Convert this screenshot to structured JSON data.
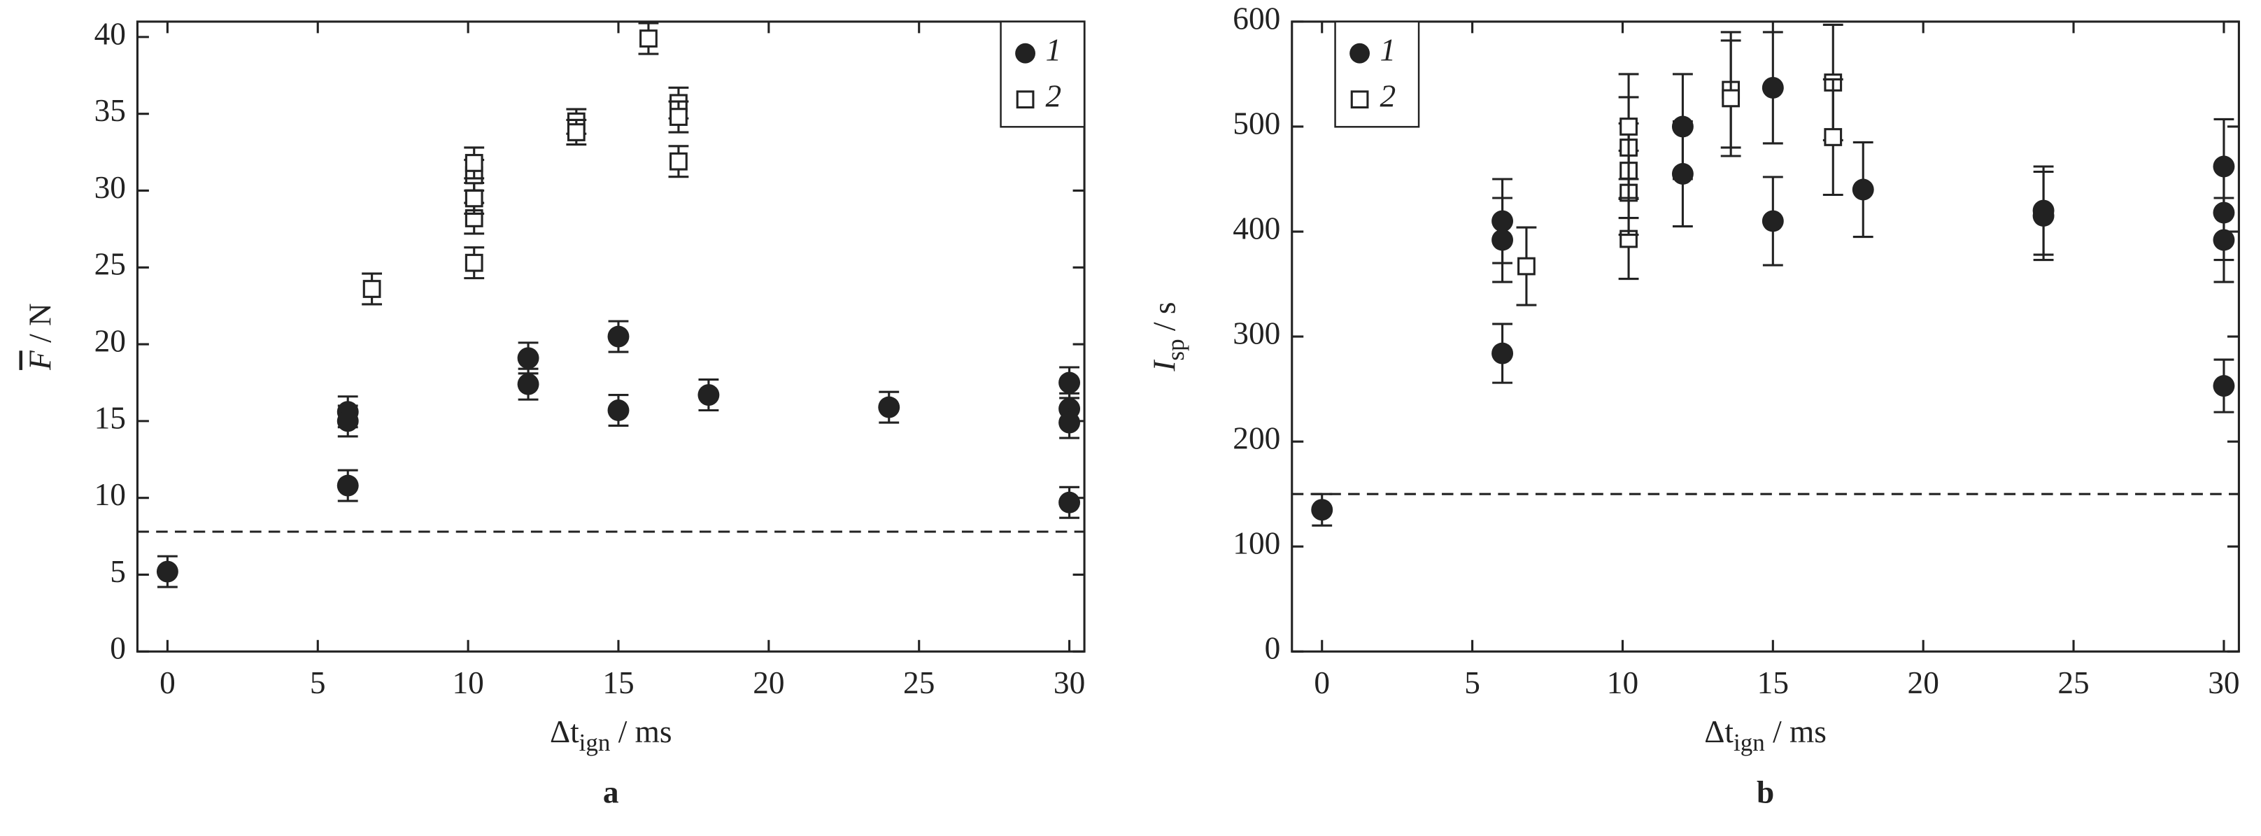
{
  "chart_data": [
    {
      "type": "scatter",
      "panel_label": "a",
      "x_label": {
        "main": "Δt",
        "sub": "ign",
        "unit": " / ms"
      },
      "y_label": {
        "main": "F",
        "unit": " / N"
      },
      "xlim": [
        -1,
        30.5
      ],
      "ylim": [
        0,
        41
      ],
      "xticks": [
        0,
        5,
        10,
        15,
        20,
        25,
        30
      ],
      "yticks": [
        0,
        5,
        10,
        15,
        20,
        25,
        30,
        35,
        40
      ],
      "reference_line": 7.8,
      "legend": "upper right",
      "series": [
        {
          "name": "1",
          "marker": "circle",
          "color": "#222222",
          "x": [
            0,
            6,
            6,
            6,
            12,
            12,
            15,
            15,
            18,
            24,
            30,
            30,
            30,
            30
          ],
          "values": [
            5.2,
            15.6,
            15.0,
            10.8,
            19.1,
            17.4,
            20.5,
            15.7,
            16.7,
            15.9,
            17.5,
            15.8,
            14.9,
            9.7
          ],
          "errors": [
            1.0,
            1.0,
            1.0,
            1.0,
            1.0,
            1.0,
            1.0,
            1.0,
            1.0,
            1.0,
            1.0,
            1.0,
            1.0,
            1.0
          ]
        },
        {
          "name": "2",
          "marker": "square",
          "color": "#222222",
          "x": [
            6.8,
            10.2,
            10.2,
            10.2,
            10.2,
            10.2,
            13.6,
            13.6,
            16,
            17,
            17,
            17
          ],
          "values": [
            23.6,
            25.3,
            28.2,
            29.5,
            31.0,
            31.8,
            34.5,
            33.8,
            39.9,
            35.7,
            34.8,
            31.9
          ],
          "errors": [
            1.0,
            1.0,
            1.0,
            1.0,
            1.0,
            1.0,
            0.8,
            0.8,
            1.0,
            1.0,
            1.0,
            1.0
          ]
        }
      ]
    },
    {
      "type": "scatter",
      "panel_label": "b",
      "x_label": {
        "main": "Δt",
        "sub": "ign",
        "unit": " / ms"
      },
      "y_label": {
        "main": "I",
        "sub": "sp",
        "unit": " / s"
      },
      "xlim": [
        -1,
        30.5
      ],
      "ylim": [
        0,
        600
      ],
      "xticks": [
        0,
        5,
        10,
        15,
        20,
        25,
        30
      ],
      "yticks": [
        0,
        100,
        200,
        300,
        400,
        500,
        600
      ],
      "reference_line": 150,
      "legend": "upper left",
      "series": [
        {
          "name": "1",
          "marker": "circle",
          "color": "#222222",
          "x": [
            0,
            6,
            6,
            6,
            12,
            12,
            15,
            15,
            18,
            24,
            24,
            30,
            30,
            30,
            30
          ],
          "values": [
            135,
            410,
            392,
            284,
            500,
            455,
            537,
            410,
            440,
            420,
            415,
            462,
            418,
            392,
            253
          ],
          "errors": [
            15,
            40,
            40,
            28,
            50,
            50,
            53,
            42,
            45,
            42,
            42,
            45,
            45,
            40,
            25
          ]
        },
        {
          "name": "2",
          "marker": "square",
          "color": "#222222",
          "x": [
            6.8,
            10.2,
            10.2,
            10.2,
            10.2,
            10.2,
            13.6,
            13.6,
            17,
            17
          ],
          "values": [
            367,
            393,
            437,
            458,
            480,
            500,
            535,
            527,
            542,
            490
          ],
          "errors": [
            37,
            38,
            40,
            45,
            48,
            50,
            55,
            55,
            55,
            55
          ]
        }
      ]
    }
  ]
}
